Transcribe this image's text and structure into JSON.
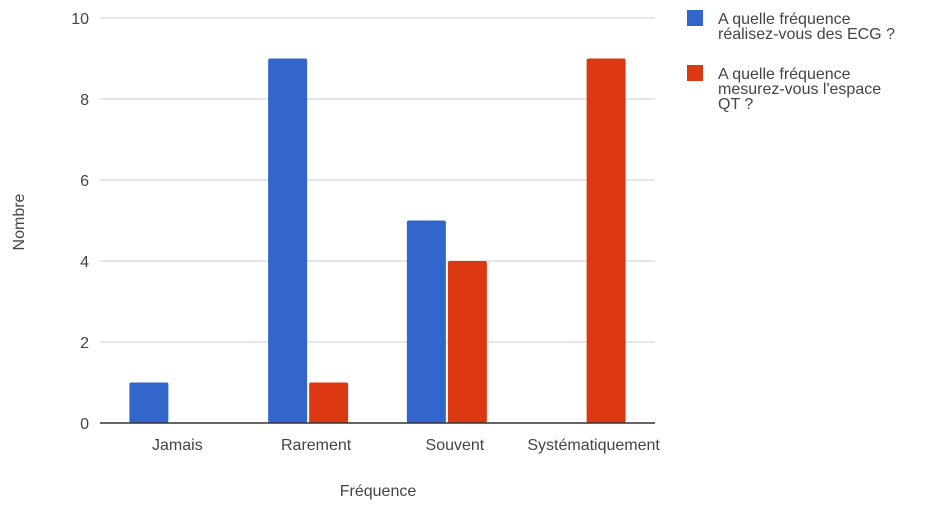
{
  "chart_data": {
    "type": "bar",
    "xlabel": "Fréquence",
    "ylabel": "Nombre",
    "categories": [
      "Jamais",
      "Rarement",
      "Souvent",
      "Systématiquement"
    ],
    "series": [
      {
        "name": "A quelle fréquence réalisez-vous des ECG ?",
        "values": [
          1,
          9,
          5,
          0
        ],
        "color": "#3366cc"
      },
      {
        "name": "A quelle fréquence mesurez-vous l'espace QT ?",
        "values": [
          0,
          1,
          4,
          9
        ],
        "color": "#dc3912"
      }
    ],
    "ylim": [
      0,
      10
    ],
    "yticks": [
      0,
      2,
      4,
      6,
      8,
      10
    ],
    "grid": true,
    "legend_position": "right"
  }
}
